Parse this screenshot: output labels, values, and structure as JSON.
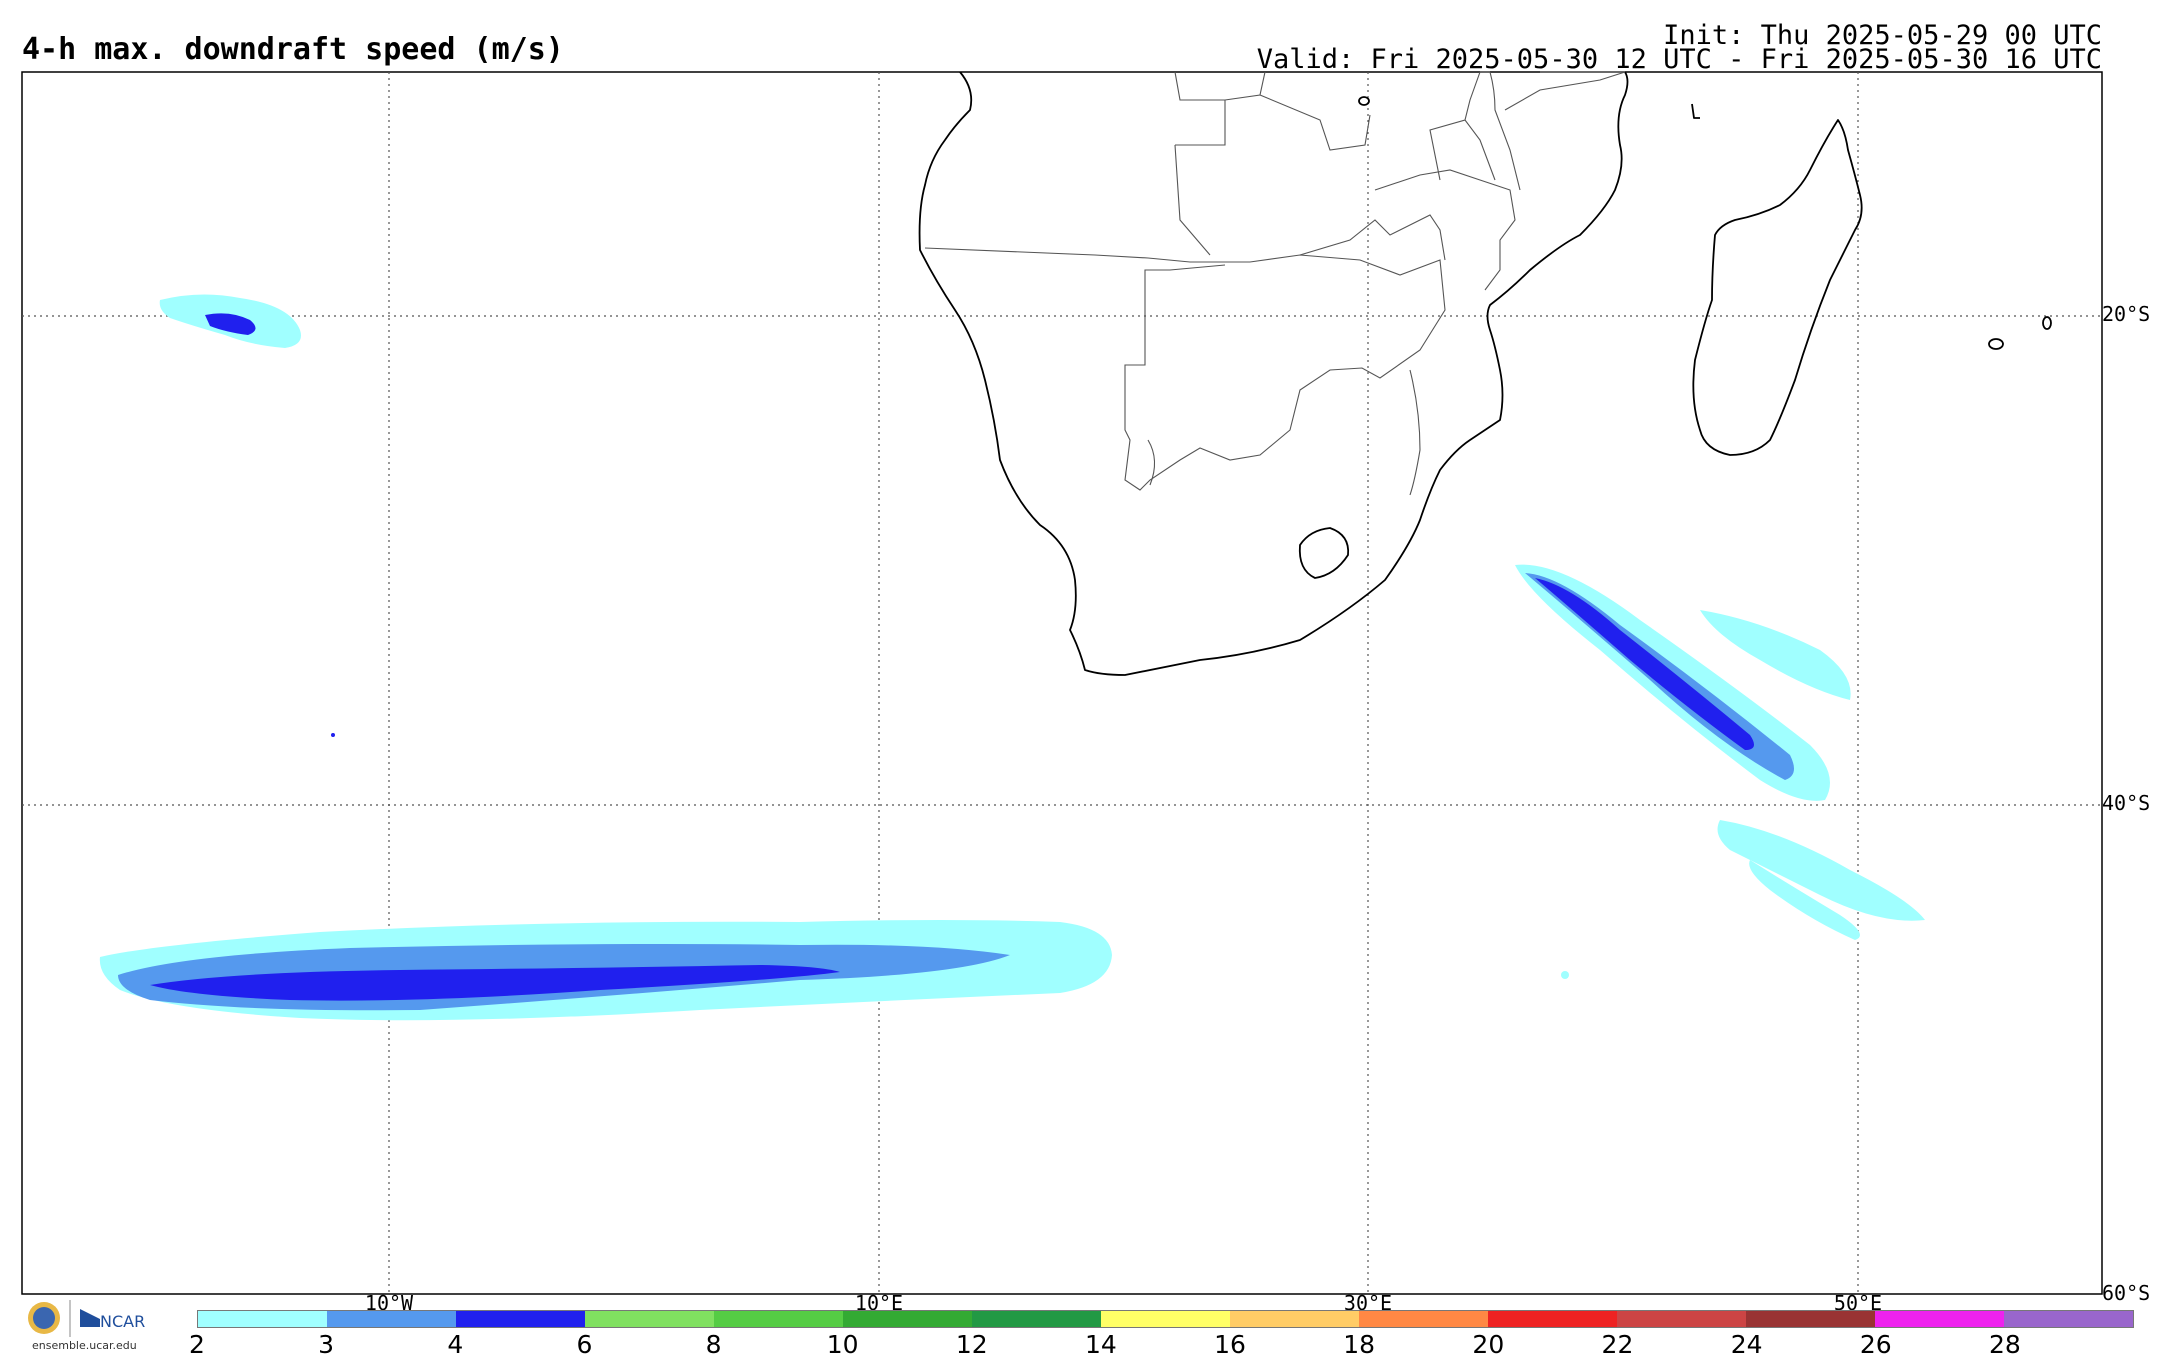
{
  "title": "4-h max. downdraft speed (m/s)",
  "init": "Init: Thu 2025-05-29 00 UTC",
  "valid": "Valid: Fri 2025-05-30 12 UTC - Fri 2025-05-30 16 UTC",
  "lon_labels": [
    "10°W",
    "10°E",
    "30°E",
    "50°E"
  ],
  "lat_labels": [
    "20°S",
    "40°S",
    "60°S"
  ],
  "colorbar": {
    "colors": [
      "#a0ffff",
      "#5599ee",
      "#2020ee",
      "#80e060",
      "#55cc44",
      "#33aa33",
      "#229944",
      "#ffff66",
      "#ffcc66",
      "#ff8844",
      "#ee2222",
      "#cc4444",
      "#993333",
      "#ee22ee",
      "#9966cc"
    ],
    "labels": [
      "2",
      "3",
      "4",
      "6",
      "8",
      "10",
      "12",
      "14",
      "16",
      "18",
      "20",
      "22",
      "24",
      "26",
      "28"
    ]
  },
  "logo": {
    "text": "NCAR",
    "url": "ensemble.ucar.edu",
    "name": "NSF"
  }
}
